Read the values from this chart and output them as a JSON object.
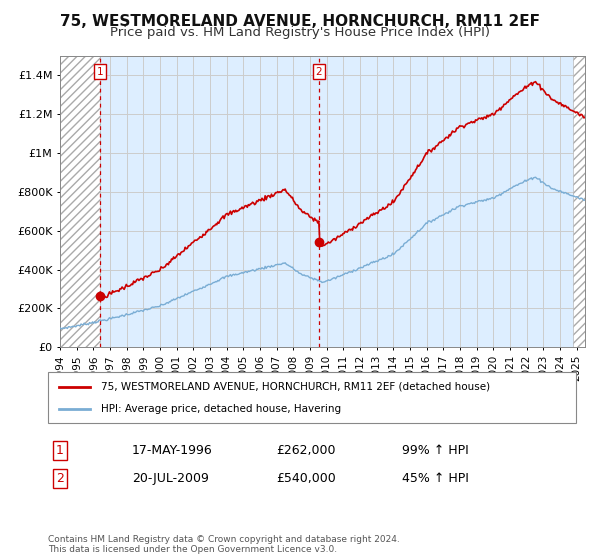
{
  "title": "75, WESTMORELAND AVENUE, HORNCHURCH, RM11 2EF",
  "subtitle": "Price paid vs. HM Land Registry's House Price Index (HPI)",
  "ylim": [
    0,
    1500000
  ],
  "xlim_start": 1994.0,
  "xlim_end": 2025.5,
  "yticks": [
    0,
    200000,
    400000,
    600000,
    800000,
    1000000,
    1200000,
    1400000
  ],
  "ytick_labels": [
    "£0",
    "£200K",
    "£400K",
    "£600K",
    "£800K",
    "£1M",
    "£1.2M",
    "£1.4M"
  ],
  "xticks": [
    1994,
    1995,
    1996,
    1997,
    1998,
    1999,
    2000,
    2001,
    2002,
    2003,
    2004,
    2005,
    2006,
    2007,
    2008,
    2009,
    2010,
    2011,
    2012,
    2013,
    2014,
    2015,
    2016,
    2017,
    2018,
    2019,
    2020,
    2021,
    2022,
    2023,
    2024,
    2025
  ],
  "sale1_x": 1996.38,
  "sale1_y": 262000,
  "sale1_label": "1",
  "sale1_date": "17-MAY-1996",
  "sale1_price": "£262,000",
  "sale1_hpi": "99% ↑ HPI",
  "sale2_x": 2009.54,
  "sale2_y": 540000,
  "sale2_label": "2",
  "sale2_date": "20-JUL-2009",
  "sale2_price": "£540,000",
  "sale2_hpi": "45% ↑ HPI",
  "line1_color": "#cc0000",
  "line2_color": "#7aadd4",
  "grid_color": "#cccccc",
  "background_color": "#ddeeff",
  "legend1_label": "75, WESTMORELAND AVENUE, HORNCHURCH, RM11 2EF (detached house)",
  "legend2_label": "HPI: Average price, detached house, Havering",
  "footer": "Contains HM Land Registry data © Crown copyright and database right 2024.\nThis data is licensed under the Open Government Licence v3.0.",
  "title_fontsize": 11,
  "subtitle_fontsize": 9.5
}
